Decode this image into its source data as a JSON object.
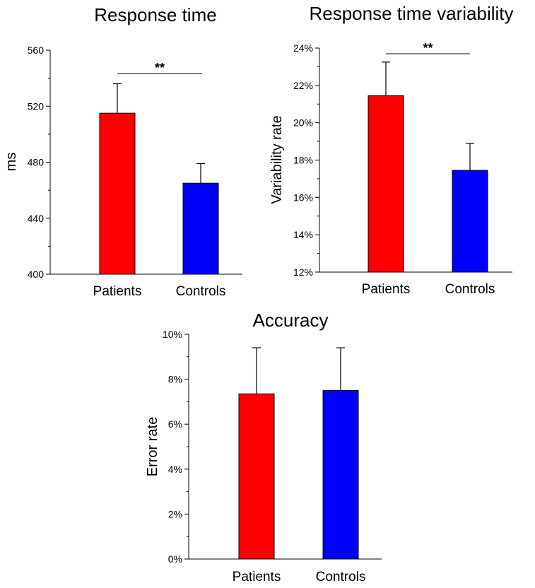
{
  "chart_data": [
    {
      "type": "bar",
      "title": "Response time",
      "xlabel": "",
      "ylabel": "ms",
      "categories": [
        "Patients",
        "Controls"
      ],
      "values": [
        515,
        465
      ],
      "errors": [
        21,
        14
      ],
      "colors": [
        "#ff0000",
        "#0000ff"
      ],
      "ylim": [
        400,
        560
      ],
      "yticks": [
        400,
        440,
        480,
        520,
        560
      ],
      "ytick_labels": [
        "400",
        "440",
        "480",
        "520",
        "560"
      ],
      "significance": "**",
      "grid": false
    },
    {
      "type": "bar",
      "title": "Response time variability",
      "xlabel": "",
      "ylabel": "Variability rate",
      "categories": [
        "Patients",
        "Controls"
      ],
      "values": [
        21.45,
        17.45
      ],
      "errors": [
        1.8,
        1.45
      ],
      "colors": [
        "#ff0000",
        "#0000ff"
      ],
      "ylim": [
        12,
        24
      ],
      "yticks": [
        12,
        14,
        16,
        18,
        20,
        22,
        24
      ],
      "ytick_labels": [
        "12%",
        "14%",
        "16%",
        "18%",
        "20%",
        "22%",
        "24%"
      ],
      "significance": "**",
      "grid": false
    },
    {
      "type": "bar",
      "title": "Accuracy",
      "xlabel": "",
      "ylabel": "Error rate",
      "categories": [
        "Patients",
        "Controls"
      ],
      "values": [
        7.35,
        7.5
      ],
      "errors": [
        2.05,
        1.9
      ],
      "colors": [
        "#ff0000",
        "#0000ff"
      ],
      "ylim": [
        0,
        10
      ],
      "yticks": [
        0,
        2,
        4,
        6,
        8,
        10
      ],
      "ytick_labels": [
        "0%",
        "2%",
        "4%",
        "6%",
        "8%",
        "10%"
      ],
      "significance": "",
      "grid": false
    }
  ]
}
